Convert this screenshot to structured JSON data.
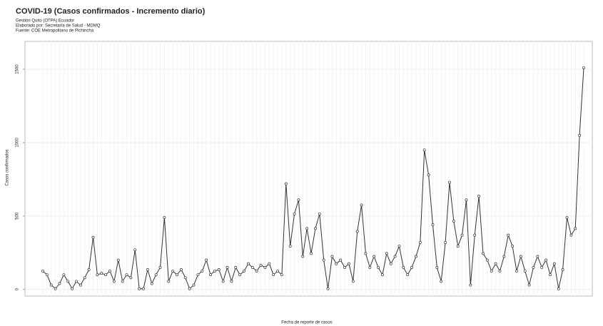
{
  "chart_data": {
    "type": "line",
    "title": "COVID-19 (Casos confirmados - Incremento diario)",
    "subtitle": [
      "Gestión Quito (OTPA) Ecuador",
      "Elaborado por: Secretaría de Salud - MDMQ",
      "Fuente: COE Metropolitano de Pichincha"
    ],
    "ylabel": "Casos confirmados",
    "xlabel": "Fecha de reporte de casos",
    "color": "#333333",
    "ylim": [
      -45,
      1690
    ],
    "yticks": [
      0,
      500,
      1000,
      1500
    ],
    "grid": true,
    "values": [
      125,
      100,
      30,
      5,
      40,
      100,
      55,
      5,
      55,
      30,
      80,
      135,
      355,
      100,
      110,
      100,
      125,
      55,
      200,
      55,
      100,
      80,
      270,
      5,
      5,
      135,
      40,
      100,
      150,
      490,
      55,
      125,
      100,
      135,
      80,
      5,
      30,
      100,
      125,
      200,
      100,
      125,
      135,
      55,
      150,
      55,
      150,
      100,
      125,
      175,
      150,
      125,
      165,
      150,
      175,
      100,
      125,
      100,
      720,
      295,
      515,
      610,
      225,
      415,
      245,
      415,
      515,
      200,
      5,
      225,
      175,
      200,
      150,
      175,
      55,
      395,
      575,
      245,
      150,
      225,
      150,
      100,
      245,
      175,
      225,
      295,
      150,
      100,
      150,
      225,
      320,
      950,
      780,
      440,
      150,
      55,
      320,
      730,
      465,
      295,
      370,
      610,
      30,
      370,
      635,
      245,
      200,
      125,
      175,
      125,
      225,
      370,
      295,
      125,
      225,
      125,
      30,
      150,
      225,
      150,
      200,
      100,
      175,
      5,
      135,
      490,
      370,
      415,
      1050,
      1510
    ]
  }
}
